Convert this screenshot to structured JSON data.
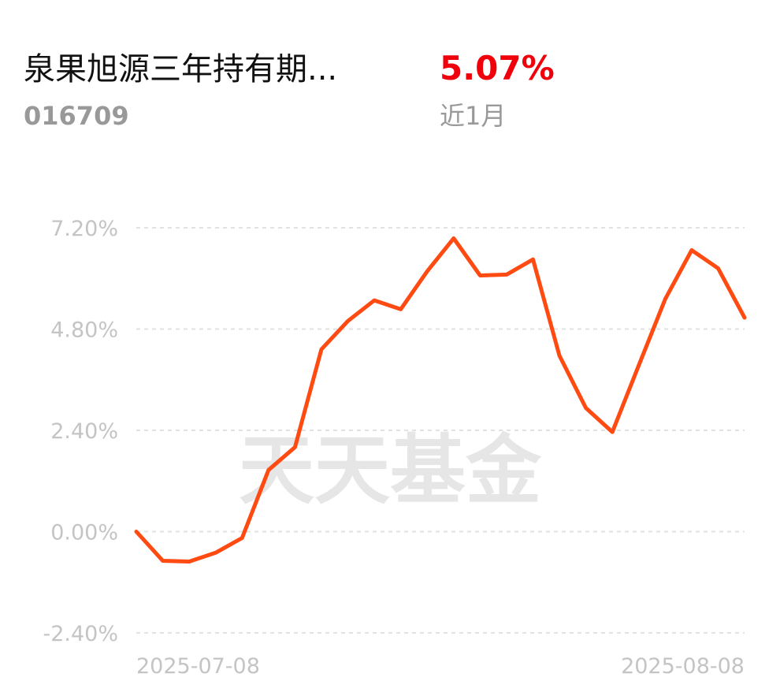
{
  "header": {
    "fund_name": "泉果旭源三年持有期...",
    "fund_code": "016709",
    "return_value": "5.07%",
    "period": "近1月"
  },
  "watermark": "天天基金",
  "chart_data": {
    "type": "line",
    "categories": [
      "2025-07-08",
      null,
      null,
      null,
      null,
      null,
      null,
      null,
      null,
      null,
      null,
      null,
      null,
      null,
      null,
      null,
      null,
      null,
      null,
      null,
      null,
      null,
      null,
      "2025-08-08"
    ],
    "series": [
      {
        "name": null,
        "color": "#ff4a12",
        "values": [
          0.0,
          -0.69,
          -0.71,
          -0.5,
          -0.15,
          1.46,
          2.0,
          4.32,
          4.99,
          5.48,
          5.27,
          6.17,
          6.95,
          6.07,
          6.09,
          6.45,
          4.17,
          2.93,
          2.36,
          3.94,
          5.51,
          6.67,
          6.24,
          5.07
        ]
      }
    ],
    "ylim": [
      -2.4,
      7.2
    ],
    "yticks": [
      {
        "value": -2.4,
        "label": "-2.40%"
      },
      {
        "value": 0,
        "label": "0.00%"
      },
      {
        "value": 2.4,
        "label": "2.40%"
      },
      {
        "value": 4.8,
        "label": "4.80%"
      },
      {
        "value": 7.2,
        "label": "7.20%"
      }
    ],
    "grid": true
  }
}
